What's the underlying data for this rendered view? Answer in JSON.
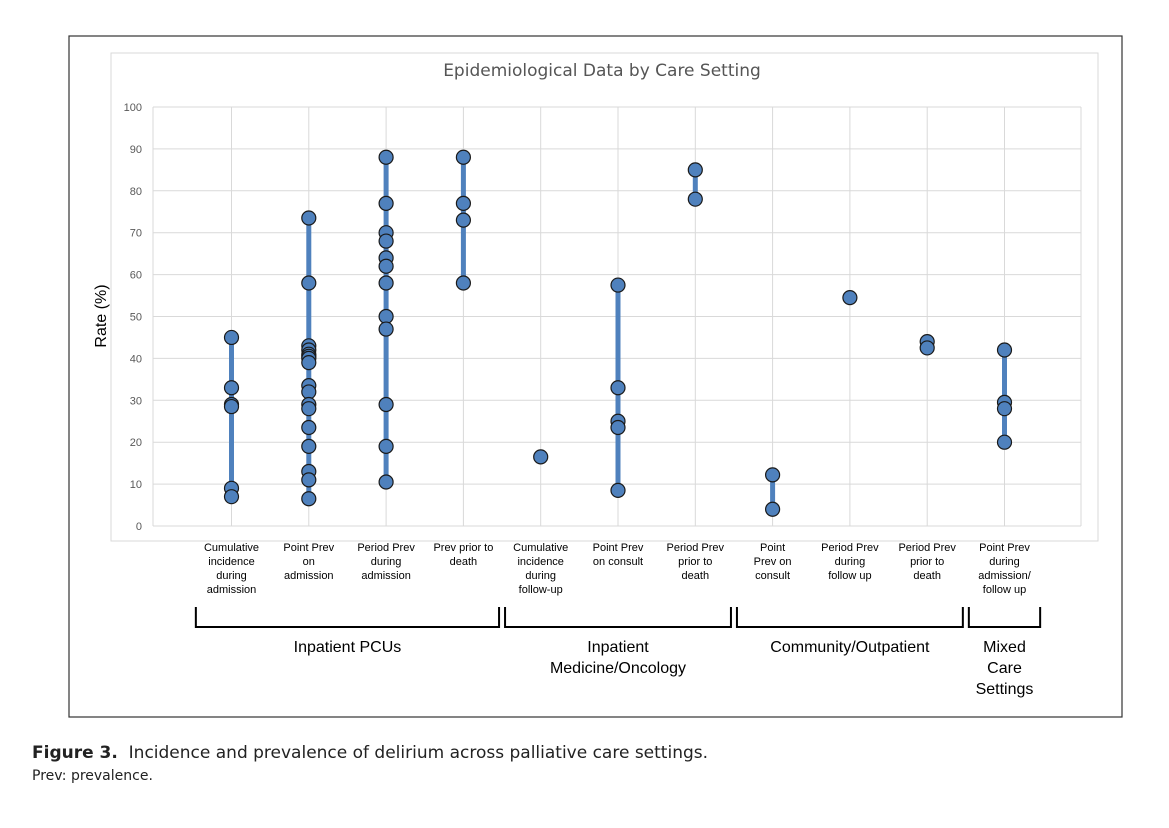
{
  "chart_data": {
    "type": "scatter",
    "title": "Epidemiological Data by Care Setting",
    "ylabel": "Rate (%)",
    "ylim": [
      0,
      100
    ],
    "yticks": [
      0,
      10,
      20,
      30,
      40,
      50,
      60,
      70,
      80,
      90,
      100
    ],
    "grid": true,
    "colors": {
      "point": "#4f81bd",
      "range": "#4f81bd",
      "point_border": "#1a1a1a"
    },
    "categories": [
      {
        "label": "Cumulative incidence during admission",
        "lines": [
          "Cumulative",
          "incidence",
          "during",
          "admission"
        ],
        "values": [
          45,
          33,
          29,
          28.5,
          9,
          7
        ]
      },
      {
        "label": "Point Prev on admission",
        "lines": [
          "Point Prev",
          "on",
          "admission"
        ],
        "values": [
          73.5,
          58,
          43,
          42,
          41,
          40.5,
          40,
          39,
          33.5,
          32,
          29,
          28,
          23.5,
          19,
          13,
          11,
          6.5
        ]
      },
      {
        "label": "Period Prev during admission",
        "lines": [
          "Period Prev",
          "during",
          "admission"
        ],
        "values": [
          88,
          77,
          70,
          68,
          64,
          62,
          58,
          50,
          47,
          29,
          19,
          10.5
        ]
      },
      {
        "label": "Prev prior to death",
        "lines": [
          "Prev prior to",
          "death"
        ],
        "values": [
          88,
          77,
          73,
          58
        ]
      },
      {
        "label": "Cumulative incidence during follow-up",
        "lines": [
          "Cumulative",
          "incidence",
          "during",
          "follow-up"
        ],
        "values": [
          16.5
        ]
      },
      {
        "label": "Point Prev on consult",
        "lines": [
          "Point Prev",
          "on consult"
        ],
        "values": [
          57.5,
          33,
          25,
          23.5,
          8.5
        ]
      },
      {
        "label": "Period Prev prior to death",
        "lines": [
          "Period Prev",
          "prior to",
          "death"
        ],
        "values": [
          85,
          78
        ]
      },
      {
        "label": "Point Prev on consult",
        "lines": [
          "Point",
          "Prev on",
          "consult"
        ],
        "values": [
          12.2,
          4
        ]
      },
      {
        "label": "Period Prev during follow up",
        "lines": [
          "Period Prev",
          "during",
          "follow up"
        ],
        "values": [
          54.5
        ]
      },
      {
        "label": "Period Prev prior to death",
        "lines": [
          "Period Prev",
          "prior to",
          "death"
        ],
        "values": [
          44,
          42.5
        ]
      },
      {
        "label": "Point Prev during admission/ follow up",
        "lines": [
          "Point Prev",
          "during",
          "admission/",
          "follow up"
        ],
        "values": [
          42,
          29.5,
          28,
          20
        ]
      }
    ],
    "groups": [
      {
        "label": "Inpatient PCUs",
        "lines": [
          "Inpatient PCUs"
        ],
        "from": 0,
        "to": 3
      },
      {
        "label": "Inpatient Medicine/Oncology",
        "lines": [
          "Inpatient",
          "Medicine/Oncology"
        ],
        "from": 4,
        "to": 6
      },
      {
        "label": "Community/Outpatient",
        "lines": [
          "Community/Outpatient"
        ],
        "from": 7,
        "to": 9
      },
      {
        "label": "Mixed Care Settings",
        "lines": [
          "Mixed",
          "Care",
          "Settings"
        ],
        "from": 10,
        "to": 10
      }
    ]
  },
  "caption": {
    "figure_label": "Figure 3.",
    "text": "Incidence and prevalence of delirium across palliative care settings.",
    "note": "Prev: prevalence."
  }
}
